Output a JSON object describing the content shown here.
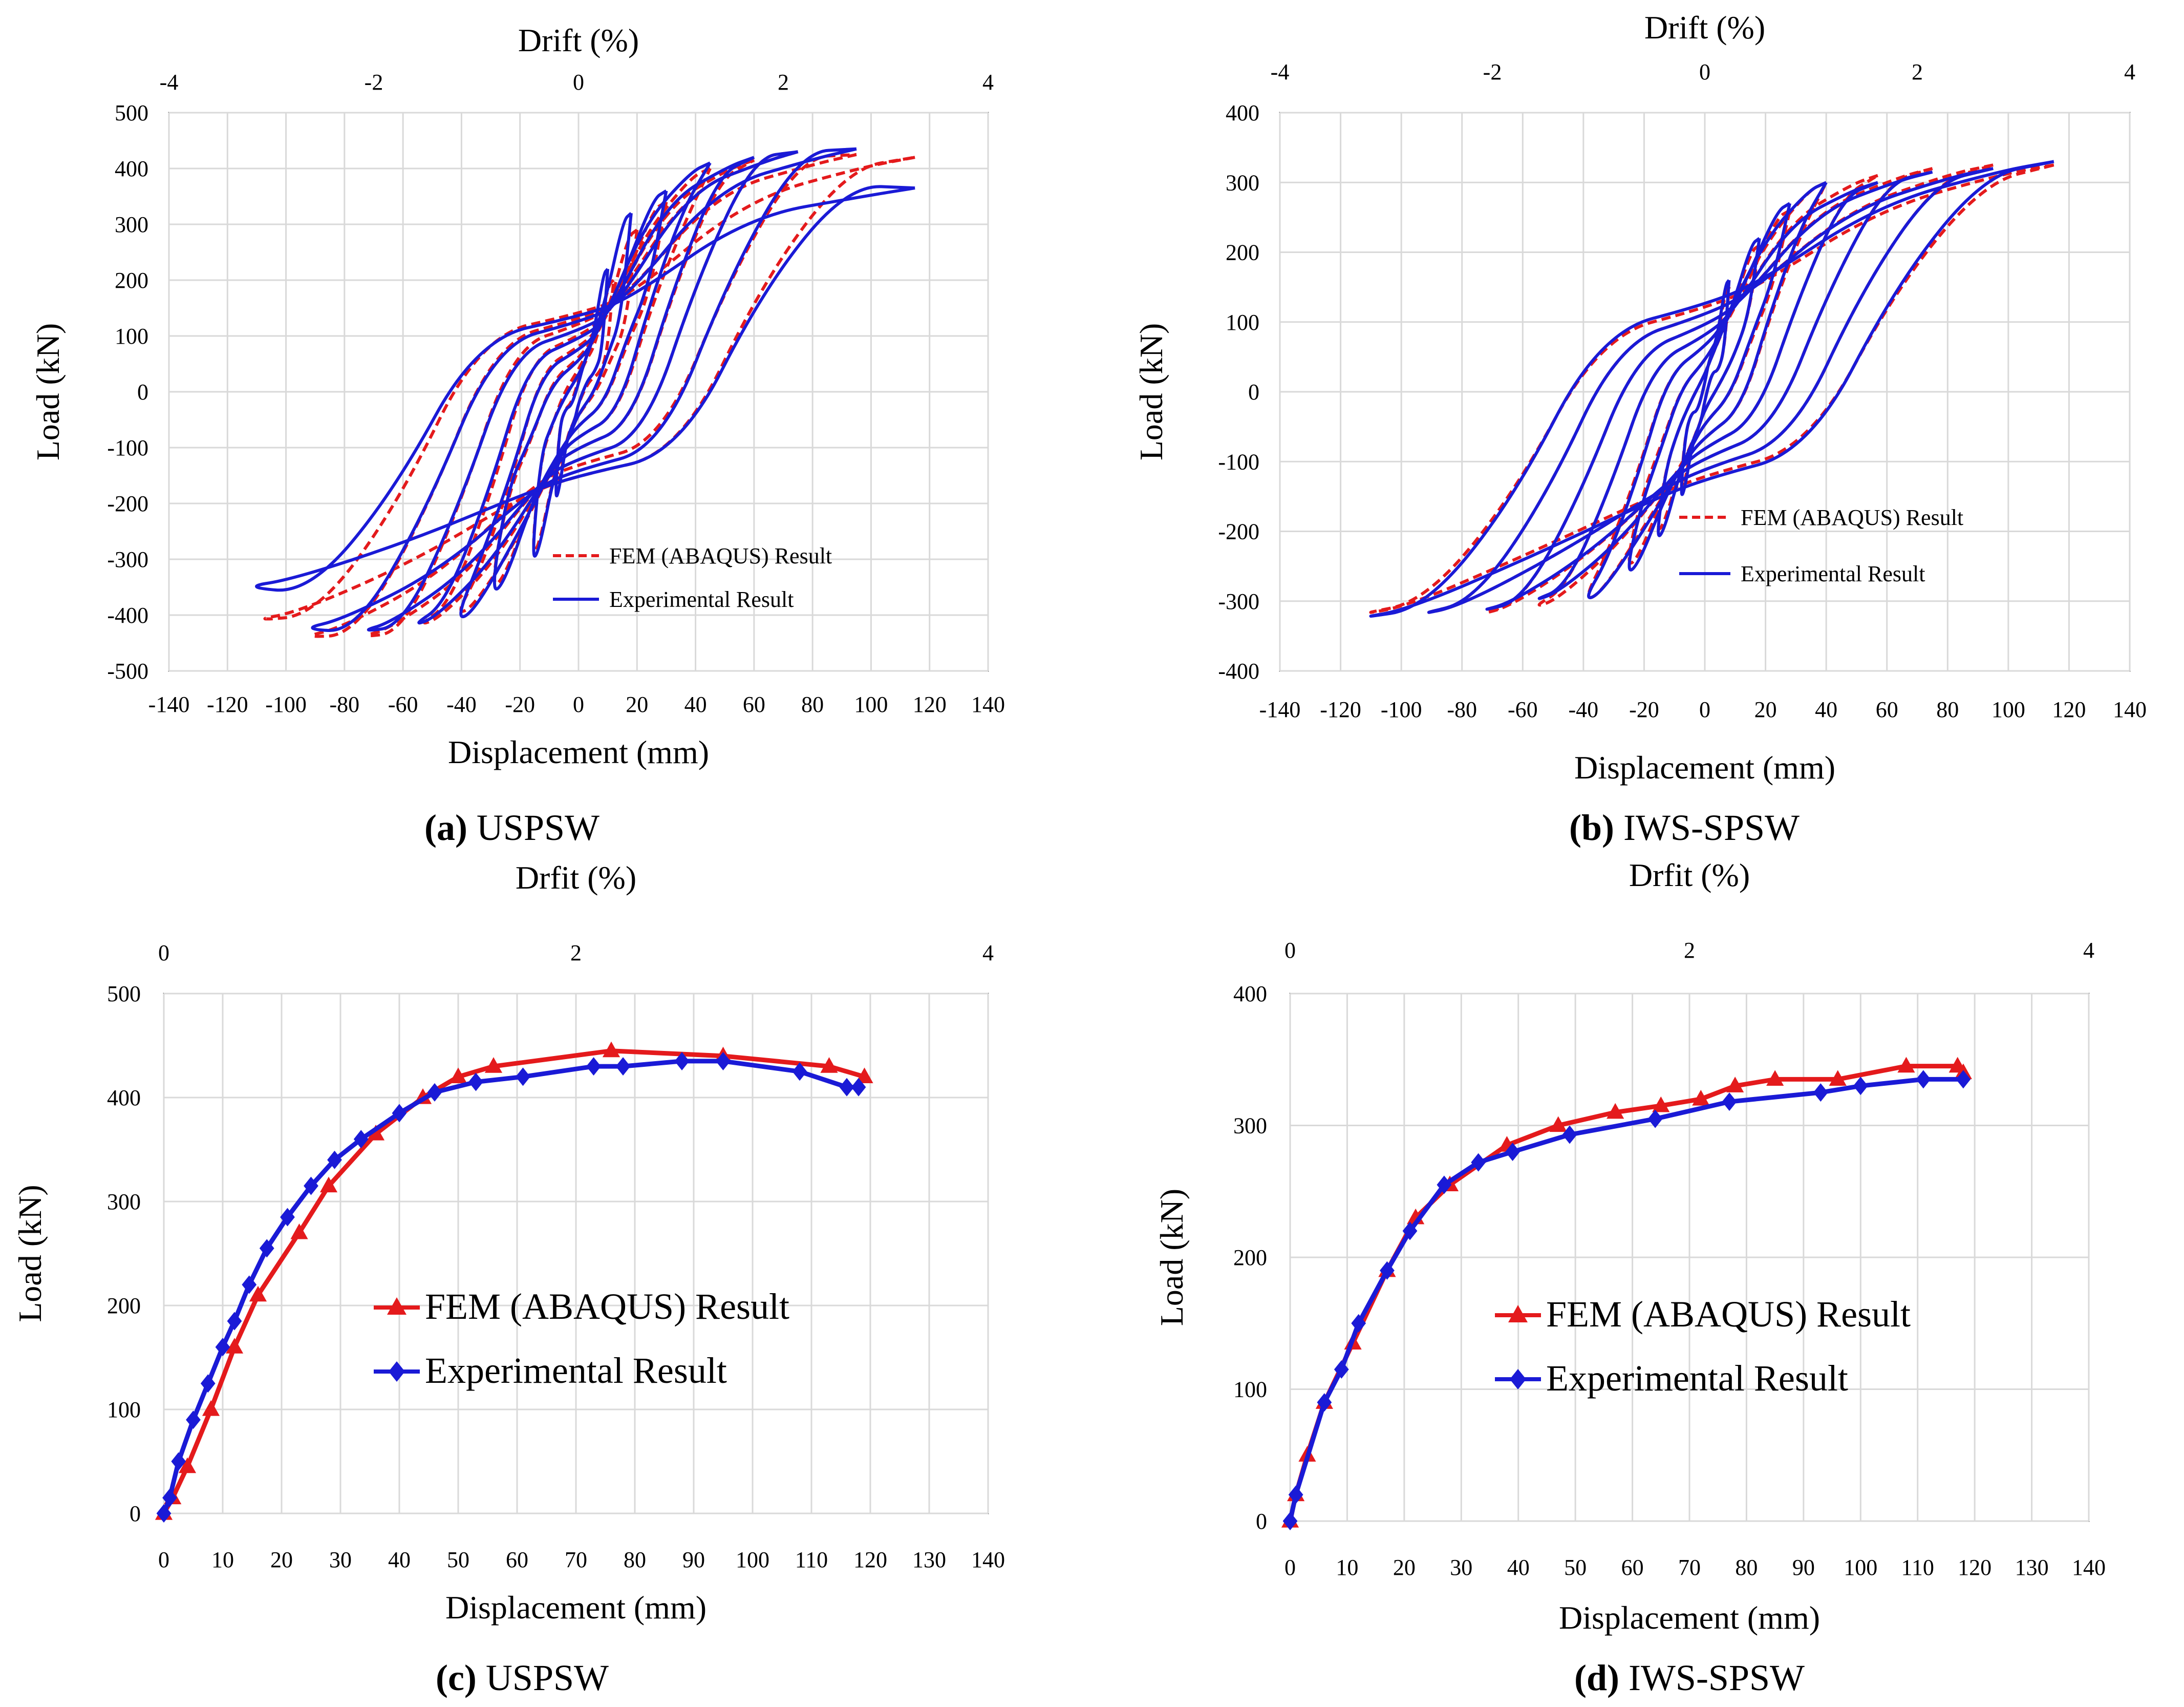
{
  "colors": {
    "fem": "#e41a1c",
    "exp": "#1a1ad6",
    "grid": "#d9d9d9",
    "frame": "#7f7f7f"
  },
  "chart_data": [
    {
      "id": "a",
      "type": "line",
      "caption_letter": "(a)",
      "caption_text": " USPSW",
      "title": "",
      "xlabel": "Displacement (mm)",
      "ylabel": "Load (kN)",
      "top_axis_label": "Drift (%)",
      "xlim": [
        -140,
        140
      ],
      "ylim": [
        -500,
        500
      ],
      "x_ticks": [
        "-140",
        "-120",
        "-100",
        "-80",
        "-60",
        "-40",
        "-20",
        "0",
        "20",
        "40",
        "60",
        "80",
        "100",
        "120",
        "140"
      ],
      "y_ticks": [
        "-500",
        "-400",
        "-300",
        "-200",
        "-100",
        "0",
        "100",
        "200",
        "300",
        "400",
        "500"
      ],
      "top_ticks": [
        "-4",
        "-2",
        "0",
        "2",
        "4"
      ],
      "legend": {
        "fem": "FEM (ABAQUS) Result",
        "exp": "Experimental Result",
        "position": "bottom-right"
      },
      "series": [
        {
          "name": "FEM (ABAQUS) Result",
          "style": "dashed",
          "cycles": [
            [
              -8,
              20,
              -60,
              -180,
              12,
              -20,
              60,
              200
            ],
            [
              -16,
              40,
              -115,
              -290,
              20,
              -40,
              115,
              290
            ],
            [
              -30,
              60,
              -180,
              -350,
              30,
              -60,
              170,
              340
            ],
            [
              -42,
              80,
              -320,
              -400,
              45,
              -80,
              300,
              400
            ],
            [
              -55,
              100,
              -380,
              -420,
              60,
              -100,
              380,
              415
            ],
            [
              -75,
              120,
              -430,
              -440,
              75,
              -120,
              420,
              430
            ],
            [
              -95,
              130,
              -435,
              -440,
              95,
              -130,
              420,
              425
            ],
            [
              -112,
              140,
              -400,
              -410,
              115,
              -150,
              400,
              420
            ]
          ]
        },
        {
          "name": "Experimental Result",
          "style": "solid",
          "cycles": [
            [
              -8,
              15,
              -60,
              -190,
              10,
              -20,
              70,
              220
            ],
            [
              -16,
              30,
              -110,
              -300,
              18,
              -40,
              130,
              320
            ],
            [
              -30,
              55,
              -170,
              -360,
              30,
              -60,
              190,
              360
            ],
            [
              -42,
              75,
              -300,
              -410,
              45,
              -80,
              330,
              410
            ],
            [
              -57,
              95,
              -380,
              -420,
              60,
              -100,
              390,
              420
            ],
            [
              -75,
              110,
              -420,
              -430,
              75,
              -120,
              420,
              430
            ],
            [
              -95,
              125,
              -430,
              -425,
              95,
              -140,
              430,
              435
            ],
            [
              -115,
              135,
              -360,
              -350,
              115,
              -150,
              370,
              365
            ]
          ]
        }
      ]
    },
    {
      "id": "b",
      "type": "line",
      "caption_letter": "(b)",
      "caption_text": " IWS-SPSW",
      "title": "",
      "xlabel": "Displacement (mm)",
      "ylabel": "Load (kN)",
      "top_axis_label": "Drift (%)",
      "xlim": [
        -140,
        140
      ],
      "ylim": [
        -400,
        400
      ],
      "x_ticks": [
        "-140",
        "-120",
        "-100",
        "-80",
        "-60",
        "-40",
        "-20",
        "0",
        "20",
        "40",
        "60",
        "80",
        "100",
        "120",
        "140"
      ],
      "y_ticks": [
        "-400",
        "-300",
        "-200",
        "-100",
        "0",
        "100",
        "200",
        "300",
        "400"
      ],
      "top_ticks": [
        "-4",
        "-2",
        "0",
        "2",
        "4"
      ],
      "legend": {
        "fem": "FEM (ABAQUS) Result",
        "exp": "Experimental Result",
        "position": "bottom-right"
      },
      "series": [
        {
          "name": "FEM (ABAQUS) Result",
          "style": "dashed",
          "cycles": [
            [
              -8,
              12,
              -60,
              -140,
              8,
              -12,
              60,
              150
            ],
            [
              -16,
              25,
              -110,
              -200,
              18,
              -25,
              110,
              210
            ],
            [
              -26,
              45,
              -150,
              -250,
              28,
              -45,
              150,
              260
            ],
            [
              -40,
              65,
              -230,
              -300,
              40,
              -65,
              230,
              300
            ],
            [
              -57,
              80,
              -280,
              -310,
              57,
              -80,
              280,
              310
            ],
            [
              -75,
              95,
              -300,
              -320,
              75,
              -95,
              300,
              320
            ],
            [
              -95,
              110,
              -300,
              -320,
              95,
              -110,
              300,
              325
            ],
            [
              -115,
              120,
              -300,
              -320,
              115,
              -120,
              300,
              325
            ]
          ]
        },
        {
          "name": "Experimental Result",
          "style": "solid",
          "cycles": [
            [
              -8,
              12,
              -60,
              -150,
              8,
              -12,
              60,
              160
            ],
            [
              -16,
              25,
              -110,
              -210,
              18,
              -25,
              110,
              220
            ],
            [
              -26,
              45,
              -160,
              -260,
              28,
              -45,
              160,
              270
            ],
            [
              -40,
              65,
              -240,
              -300,
              40,
              -65,
              240,
              300
            ],
            [
              -57,
              80,
              -280,
              -300,
              57,
              -80,
              280,
              300
            ],
            [
              -75,
              95,
              -300,
              -315,
              75,
              -95,
              300,
              315
            ],
            [
              -95,
              110,
              -300,
              -320,
              95,
              -110,
              300,
              320
            ],
            [
              -115,
              125,
              -310,
              -325,
              115,
              -125,
              310,
              330
            ]
          ]
        }
      ]
    },
    {
      "id": "c",
      "type": "line",
      "caption_letter": "(c)",
      "caption_text": " USPSW",
      "title": "",
      "xlabel": "Displacement (mm)",
      "ylabel": "Load (kN)",
      "top_axis_label": "Drfit (%)",
      "xlim": [
        0,
        140
      ],
      "ylim": [
        0,
        500
      ],
      "x_ticks": [
        "0",
        "10",
        "20",
        "30",
        "40",
        "50",
        "60",
        "70",
        "80",
        "90",
        "100",
        "110",
        "120",
        "130",
        "140"
      ],
      "y_ticks": [
        "0",
        "100",
        "200",
        "300",
        "400",
        "500"
      ],
      "top_ticks": [
        "0",
        "2",
        "4"
      ],
      "legend": {
        "fem": "FEM (ABAQUS) Result",
        "exp": "Experimental Result",
        "position": "center"
      },
      "series": [
        {
          "name": "FEM (ABAQUS) Result",
          "marker": "triangle",
          "x": [
            0,
            1.5,
            4,
            8,
            12,
            16,
            23,
            28,
            36,
            44,
            50,
            56,
            76,
            95,
            113,
            119
          ],
          "y": [
            0,
            15,
            45,
            100,
            160,
            210,
            270,
            315,
            365,
            400,
            420,
            430,
            445,
            440,
            430,
            420
          ]
        },
        {
          "name": "Experimental Result",
          "marker": "diamond",
          "x": [
            0,
            1,
            2.5,
            5,
            7.5,
            10,
            12,
            14.5,
            17.5,
            21,
            25,
            29,
            33.5,
            40,
            46,
            53,
            61,
            73,
            78,
            88,
            95,
            108,
            116,
            118
          ],
          "y": [
            0,
            15,
            50,
            90,
            125,
            160,
            185,
            220,
            255,
            285,
            315,
            340,
            360,
            385,
            405,
            415,
            420,
            430,
            430,
            435,
            435,
            425,
            410,
            410
          ]
        }
      ]
    },
    {
      "id": "d",
      "type": "line",
      "caption_letter": "(d)",
      "caption_text": " IWS-SPSW",
      "title": "",
      "xlabel": "Displacement (mm)",
      "ylabel": "Load (kN)",
      "top_axis_label": "Drfit (%)",
      "xlim": [
        0,
        140
      ],
      "ylim": [
        0,
        400
      ],
      "x_ticks": [
        "0",
        "10",
        "20",
        "30",
        "40",
        "50",
        "60",
        "70",
        "80",
        "90",
        "100",
        "110",
        "120",
        "130",
        "140"
      ],
      "y_ticks": [
        "0",
        "100",
        "200",
        "300",
        "400"
      ],
      "top_ticks": [
        "0",
        "2",
        "4"
      ],
      "legend": {
        "fem": "FEM (ABAQUS) Result",
        "exp": "Experimental Result",
        "position": "center"
      },
      "series": [
        {
          "name": "FEM (ABAQUS) Result",
          "marker": "triangle",
          "x": [
            0,
            1,
            3,
            6,
            11,
            17,
            22,
            28,
            38,
            47,
            57,
            65,
            72,
            78,
            85,
            96,
            108,
            117,
            118
          ],
          "y": [
            0,
            20,
            50,
            90,
            135,
            190,
            230,
            255,
            285,
            300,
            310,
            315,
            320,
            330,
            335,
            335,
            345,
            345,
            340
          ]
        },
        {
          "name": "Experimental Result",
          "marker": "diamond",
          "x": [
            0,
            1,
            6,
            9,
            12,
            17,
            21,
            27,
            33,
            39,
            49,
            64,
            77,
            93,
            100,
            111,
            118
          ],
          "y": [
            0,
            20,
            90,
            115,
            150,
            190,
            220,
            255,
            272,
            280,
            293,
            305,
            318,
            325,
            330,
            335,
            335
          ]
        }
      ]
    }
  ]
}
